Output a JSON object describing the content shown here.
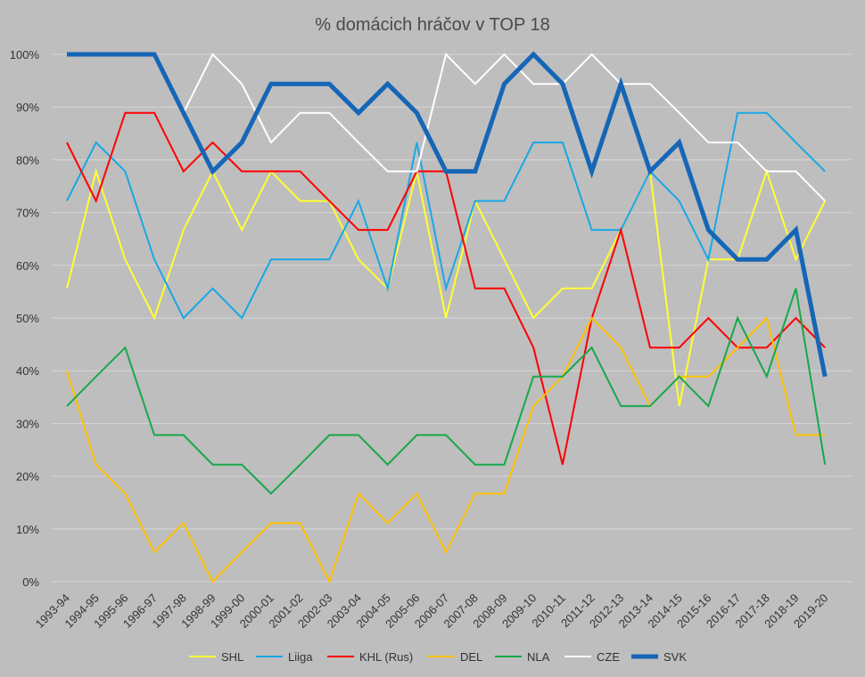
{
  "chart_data": {
    "type": "line",
    "title": "% domácich hráčov v TOP 18",
    "categories": [
      "1993-94",
      "1994-95",
      "1995-96",
      "1996-97",
      "1997-98",
      "1998-99",
      "1999-00",
      "2000-01",
      "2001-02",
      "2002-03",
      "2003-04",
      "2004-05",
      "2005-06",
      "2006-07",
      "2007-08",
      "2008-09",
      "2009-10",
      "2010-11",
      "2011-12",
      "2012-13",
      "2013-14",
      "2014-15",
      "2015-16",
      "2016-17",
      "2017-18",
      "2018-19",
      "2019-20"
    ],
    "yticks": [
      "0%",
      "10%",
      "20%",
      "30%",
      "40%",
      "50%",
      "60%",
      "70%",
      "80%",
      "90%",
      "100%"
    ],
    "ylim": [
      0,
      100
    ],
    "grid": true,
    "legend_position": "bottom",
    "series": [
      {
        "name": "SHL",
        "color": "#ffff33",
        "bold": false,
        "values": [
          55.6,
          77.8,
          61.1,
          50.0,
          66.7,
          77.8,
          66.7,
          77.8,
          72.2,
          72.2,
          61.1,
          55.6,
          77.8,
          50.0,
          72.2,
          61.1,
          50.0,
          55.6,
          55.6,
          66.7,
          77.8,
          33.3,
          61.1,
          61.1,
          77.8,
          61.1,
          72.2
        ]
      },
      {
        "name": "Liiga",
        "color": "#1aa7e6",
        "bold": false,
        "values": [
          72.2,
          83.3,
          77.8,
          61.1,
          50.0,
          55.6,
          50.0,
          61.1,
          61.1,
          61.1,
          72.2,
          55.6,
          83.3,
          55.6,
          72.2,
          72.2,
          83.3,
          83.3,
          66.7,
          66.7,
          77.8,
          72.2,
          61.1,
          88.9,
          88.9,
          83.3,
          77.8
        ]
      },
      {
        "name": "KHL (Rus)",
        "color": "#ff0000",
        "bold": false,
        "values": [
          83.3,
          72.2,
          88.9,
          88.9,
          77.8,
          83.3,
          77.8,
          77.8,
          77.8,
          72.2,
          66.7,
          66.7,
          77.8,
          77.8,
          55.6,
          55.6,
          44.4,
          22.2,
          50.0,
          66.7,
          44.4,
          44.4,
          50.0,
          44.4,
          44.4,
          50.0,
          44.4
        ]
      },
      {
        "name": "DEL",
        "color": "#ffc000",
        "bold": false,
        "values": [
          40.0,
          22.2,
          16.7,
          5.6,
          11.1,
          0.0,
          5.6,
          11.1,
          11.1,
          0.0,
          16.7,
          11.1,
          16.7,
          5.6,
          16.7,
          16.7,
          33.3,
          38.9,
          50.0,
          44.4,
          33.3,
          38.9,
          38.9,
          44.4,
          50.0,
          27.8,
          27.8
        ]
      },
      {
        "name": "NLA",
        "color": "#16a84a",
        "bold": false,
        "values": [
          33.3,
          38.9,
          44.4,
          27.8,
          27.8,
          22.2,
          22.2,
          16.7,
          22.2,
          27.8,
          27.8,
          22.2,
          27.8,
          27.8,
          22.2,
          22.2,
          38.9,
          38.9,
          44.4,
          33.3,
          33.3,
          38.9,
          33.3,
          50.0,
          38.9,
          55.6,
          22.2
        ]
      },
      {
        "name": "CZE",
        "color": "#ffffff",
        "bold": false,
        "values": [
          100,
          100,
          100,
          100,
          88.9,
          100,
          94.4,
          83.3,
          88.9,
          88.9,
          83.3,
          77.8,
          77.8,
          100,
          94.4,
          100,
          94.4,
          94.4,
          100,
          94.4,
          94.4,
          88.9,
          83.3,
          83.3,
          77.8,
          77.8,
          72.2
        ]
      },
      {
        "name": "SVK",
        "color": "#1566b7",
        "bold": true,
        "values": [
          100,
          100,
          100,
          100,
          88.9,
          77.8,
          83.3,
          94.4,
          94.4,
          94.4,
          88.9,
          94.4,
          88.9,
          77.8,
          77.8,
          94.4,
          100,
          94.4,
          77.8,
          94.4,
          77.8,
          83.3,
          66.7,
          61.1,
          61.1,
          66.7,
          38.9
        ]
      }
    ]
  }
}
